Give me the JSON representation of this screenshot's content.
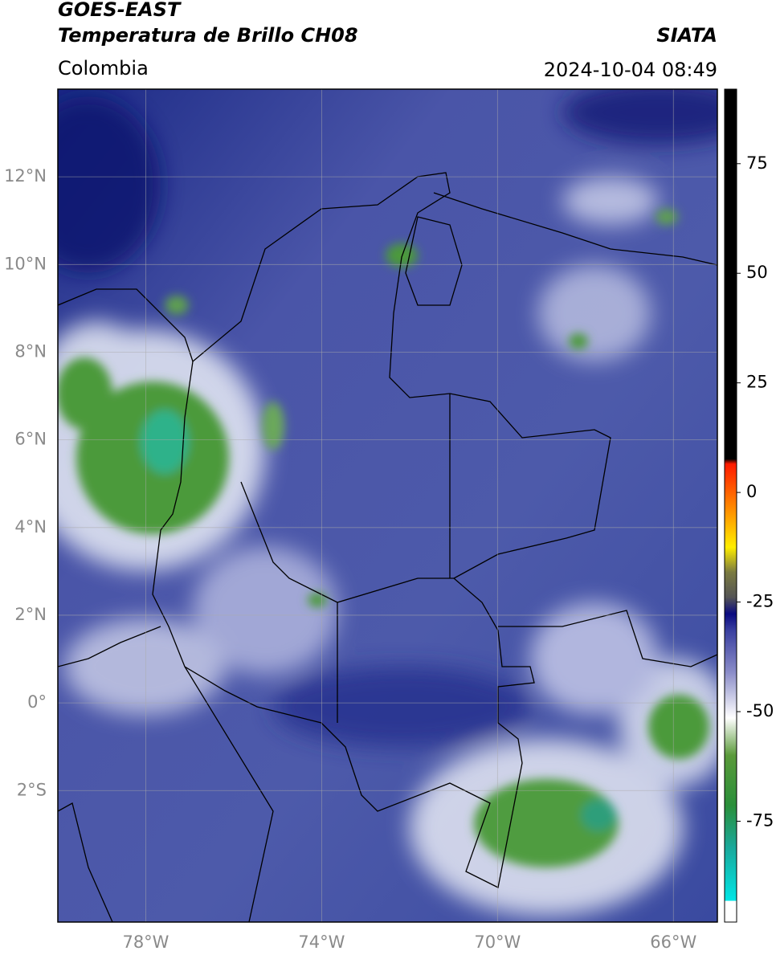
{
  "header": {
    "title_1": "GOES-EAST",
    "title_2": "Temperatura de Brillo CH08",
    "source": "SIATA",
    "region": "Colombia",
    "datetime": "2024-10-04 08:49"
  },
  "map": {
    "xlim": [
      -80,
      -65
    ],
    "ylim": [
      -5,
      14
    ],
    "xticks": [
      {
        "value": -78,
        "label": "78°W"
      },
      {
        "value": -74,
        "label": "74°W"
      },
      {
        "value": -70,
        "label": "70°W"
      },
      {
        "value": -66,
        "label": "66°W"
      }
    ],
    "yticks": [
      {
        "value": 12,
        "label": "12°N"
      },
      {
        "value": 10,
        "label": "10°N"
      },
      {
        "value": 8,
        "label": "8°N"
      },
      {
        "value": 6,
        "label": "6°N"
      },
      {
        "value": 4,
        "label": "4°N"
      },
      {
        "value": 2,
        "label": "2°N"
      },
      {
        "value": 0,
        "label": "0°"
      },
      {
        "value": -2,
        "label": "2°S"
      }
    ],
    "grid": true
  },
  "colorbar": {
    "lim": [
      -98,
      92
    ],
    "ticks": [
      75,
      50,
      25,
      0,
      -25,
      -50,
      -75
    ]
  }
}
